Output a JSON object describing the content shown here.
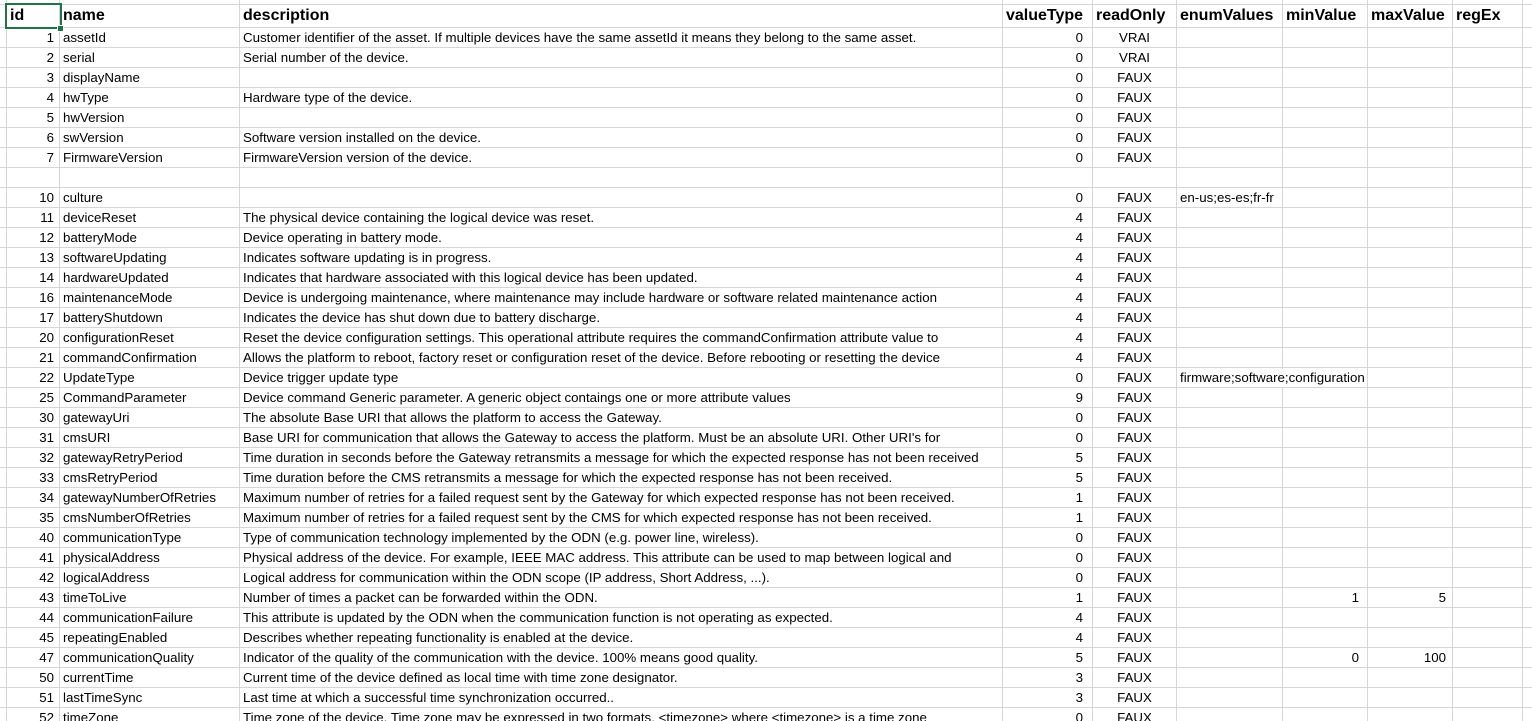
{
  "sheet": {
    "gridline_color": "#d6d6d6",
    "selection_color": "#217346",
    "selection": {
      "cell": "id-header",
      "has_fill_handle": true
    },
    "columns": [
      {
        "key": "id",
        "label": "id"
      },
      {
        "key": "name",
        "label": "name"
      },
      {
        "key": "description",
        "label": "description"
      },
      {
        "key": "valueType",
        "label": "valueType"
      },
      {
        "key": "readOnly",
        "label": "readOnly"
      },
      {
        "key": "enumValues",
        "label": "enumValues"
      },
      {
        "key": "minValue",
        "label": "minValue"
      },
      {
        "key": "maxValue",
        "label": "maxValue"
      },
      {
        "key": "regEx",
        "label": "regEx"
      }
    ],
    "rows": [
      [
        "1",
        "assetId",
        "Customer identifier of the asset. If multiple devices have the same assetId it means they belong to the same asset.",
        "0",
        "VRAI",
        "",
        "",
        "",
        ""
      ],
      [
        "2",
        "serial",
        "Serial number of the device.",
        "0",
        "VRAI",
        "",
        "",
        "",
        ""
      ],
      [
        "3",
        "displayName",
        "",
        "0",
        "FAUX",
        "",
        "",
        "",
        ""
      ],
      [
        "4",
        "hwType",
        "Hardware type of the device.",
        "0",
        "FAUX",
        "",
        "",
        "",
        ""
      ],
      [
        "5",
        "hwVersion",
        "",
        "0",
        "FAUX",
        "",
        "",
        "",
        ""
      ],
      [
        "6",
        "swVersion",
        "Software version installed on the device.",
        "0",
        "FAUX",
        "",
        "",
        "",
        ""
      ],
      [
        "7",
        "FirmwareVersion",
        "FirmwareVersion version of the device.",
        "0",
        "FAUX",
        "",
        "",
        "",
        ""
      ],
      [
        "",
        "",
        "",
        "",
        "",
        "",
        "",
        "",
        ""
      ],
      [
        "10",
        "culture",
        "",
        "0",
        "FAUX",
        "en-us;es-es;fr-fr",
        "",
        "",
        ""
      ],
      [
        "11",
        "deviceReset",
        "The physical device containing the logical device was reset.",
        "4",
        "FAUX",
        "",
        "",
        "",
        ""
      ],
      [
        "12",
        "batteryMode",
        "Device operating in battery mode.",
        "4",
        "FAUX",
        "",
        "",
        "",
        ""
      ],
      [
        "13",
        "softwareUpdating",
        "Indicates software updating is in progress.",
        "4",
        "FAUX",
        "",
        "",
        "",
        ""
      ],
      [
        "14",
        "hardwareUpdated",
        "Indicates that hardware associated with this logical device has been updated.",
        "4",
        "FAUX",
        "",
        "",
        "",
        ""
      ],
      [
        "16",
        "maintenanceMode",
        "Device is undergoing maintenance, where maintenance may include hardware or software related maintenance action",
        "4",
        "FAUX",
        "",
        "",
        "",
        ""
      ],
      [
        "17",
        "batteryShutdown",
        "Indicates the device has shut down due to battery discharge.",
        "4",
        "FAUX",
        "",
        "",
        "",
        ""
      ],
      [
        "20",
        "configurationReset",
        "Reset the device configuration settings. This operational attribute requires the commandConfirmation attribute value to",
        "4",
        "FAUX",
        "",
        "",
        "",
        ""
      ],
      [
        "21",
        "commandConfirmation",
        "Allows the platform to reboot, factory reset or configuration reset of the device. Before rebooting or resetting the device",
        "4",
        "FAUX",
        "",
        "",
        "",
        ""
      ],
      [
        "22",
        "UpdateType",
        "Device trigger update type",
        "0",
        "FAUX",
        "firmware;software;configuration",
        "",
        "",
        ""
      ],
      [
        "25",
        "CommandParameter",
        "Device command Generic parameter. A generic object contaings one or more attribute  values",
        "9",
        "FAUX",
        "",
        "",
        "",
        ""
      ],
      [
        "30",
        "gatewayUri",
        "The absolute Base URI that allows the platform to access the Gateway.",
        "0",
        "FAUX",
        "",
        "",
        "",
        ""
      ],
      [
        "31",
        "cmsURI",
        "Base URI for communication that allows the Gateway to access the platform. Must be an absolute URI. Other URI's for",
        "0",
        "FAUX",
        "",
        "",
        "",
        ""
      ],
      [
        "32",
        "gatewayRetryPeriod",
        "Time duration in seconds before the Gateway retransmits a message for which the expected response has not been received",
        "5",
        "FAUX",
        "",
        "",
        "",
        ""
      ],
      [
        "33",
        "cmsRetryPeriod",
        "Time duration before the CMS retransmits a message for which the expected response has not been received.",
        "5",
        "FAUX",
        "",
        "",
        "",
        ""
      ],
      [
        "34",
        "gatewayNumberOfRetries",
        "Maximum number of retries for a failed request sent by the Gateway for which expected response has not been received.",
        "1",
        "FAUX",
        "",
        "",
        "",
        ""
      ],
      [
        "35",
        "cmsNumberOfRetries",
        "Maximum number of retries for a failed request sent by the CMS for which expected response has not been received.",
        "1",
        "FAUX",
        "",
        "",
        "",
        ""
      ],
      [
        "40",
        "communicationType",
        "Type of communication technology implemented by the ODN (e.g. power line, wireless).",
        "0",
        "FAUX",
        "",
        "",
        "",
        ""
      ],
      [
        "41",
        "physicalAddress",
        "Physical address of the device. For example, IEEE MAC address. This attribute can be used to map between logical and",
        "0",
        "FAUX",
        "",
        "",
        "",
        ""
      ],
      [
        "42",
        "logicalAddress",
        "Logical address for communication within the ODN scope (IP address, Short Address, ...).",
        "0",
        "FAUX",
        "",
        "",
        "",
        ""
      ],
      [
        "43",
        "timeToLive",
        "Number of times a packet can be forwarded within the ODN.",
        "1",
        "FAUX",
        "",
        "1",
        "5",
        ""
      ],
      [
        "44",
        "communicationFailure",
        "This attribute is updated by the ODN when the communication function is not operating as expected.",
        "4",
        "FAUX",
        "",
        "",
        "",
        ""
      ],
      [
        "45",
        "repeatingEnabled",
        "Describes whether repeating functionality is enabled at the device.",
        "4",
        "FAUX",
        "",
        "",
        "",
        ""
      ],
      [
        "47",
        "communicationQuality",
        "Indicator of the quality of the communication with the device. 100% means good quality.",
        "5",
        "FAUX",
        "",
        "0",
        "100",
        ""
      ],
      [
        "50",
        "currentTime",
        "Current time of the device defined as local time with time zone designator.",
        "3",
        "FAUX",
        "",
        "",
        "",
        ""
      ],
      [
        "51",
        "lastTimeSync",
        "Last time at which a successful time synchronization occurred..",
        "3",
        "FAUX",
        "",
        "",
        "",
        ""
      ],
      [
        "52",
        "timeZone",
        "Time zone of the device. Time zone may be expressed in two formats. <timezone> where <timezone> is a time zone",
        "0",
        "FAUX",
        "",
        "",
        "",
        ""
      ]
    ]
  }
}
